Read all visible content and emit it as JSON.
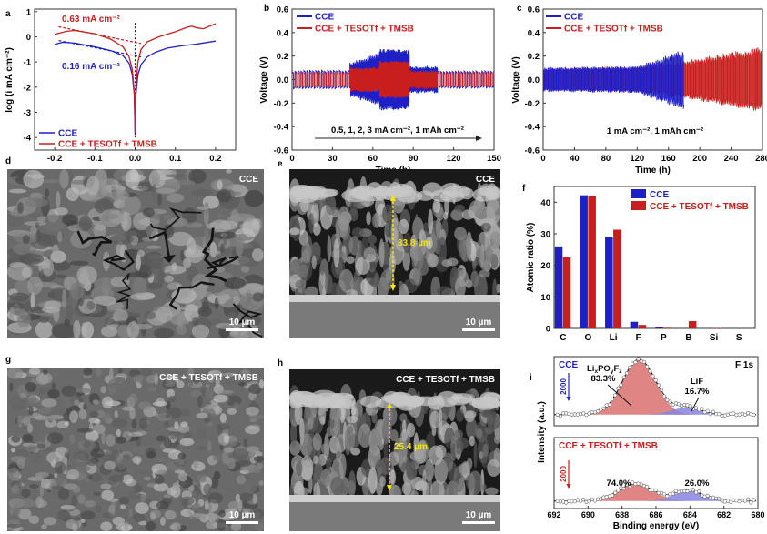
{
  "panel_letters": {
    "a": "a",
    "b": "b",
    "c": "c",
    "d": "d",
    "e": "e",
    "f": "f",
    "g": "g",
    "h": "h",
    "i": "i"
  },
  "colors": {
    "cce": "#1f1fc8",
    "additive": "#c81e1e",
    "red_peak": "#d9716f",
    "blue_peak": "#8585e0",
    "scale_text": "#ffffff",
    "thickness": "#f5e600"
  },
  "chart_data": [
    {
      "id": "a",
      "type": "line",
      "xlabel": "Potential (V, vs. Li⁺/Li)",
      "ylabel": "log (i mA cm⁻²)",
      "xlim": [
        -0.25,
        0.25
      ],
      "ylim": [
        -4.5,
        1.1
      ],
      "xticks": [
        "-0.2",
        "-0.1",
        "0.0",
        "0.1",
        "0.2"
      ],
      "xtick_values": [
        -0.2,
        -0.1,
        0,
        0.1,
        0.2
      ],
      "yticks": [
        "1",
        "0",
        "-1",
        "-2",
        "-3",
        "-4"
      ],
      "ytick_values": [
        1,
        0,
        -1,
        -2,
        -3,
        -4
      ],
      "series": [
        {
          "name": "CCE",
          "color": "#1f1fc8",
          "x": [
            -0.2,
            -0.18,
            -0.15,
            -0.1,
            -0.06,
            -0.03,
            -0.015,
            -0.007,
            -0.002,
            0,
            0.002,
            0.007,
            0.015,
            0.03,
            0.05,
            0.08,
            0.12,
            0.15,
            0.2
          ],
          "y": [
            -0.3,
            -0.22,
            -0.25,
            -0.4,
            -0.55,
            -0.75,
            -1.05,
            -1.5,
            -2.3,
            -3.9,
            -2.3,
            -1.5,
            -1.1,
            -0.8,
            -0.62,
            -0.45,
            -0.35,
            -0.3,
            -0.17
          ]
        },
        {
          "name": "CCE + TESOTf + TMSB",
          "color": "#c81e1e",
          "x": [
            -0.2,
            -0.17,
            -0.15,
            -0.1,
            -0.06,
            -0.03,
            -0.015,
            -0.007,
            -0.002,
            0,
            0.002,
            0.007,
            0.015,
            0.03,
            0.06,
            0.1,
            0.13,
            0.14,
            0.155,
            0.17,
            0.2
          ],
          "y": [
            0.1,
            0.22,
            0.25,
            0.12,
            -0.1,
            -0.4,
            -0.8,
            -1.3,
            -2.2,
            -3.8,
            -2.0,
            -1.0,
            -0.5,
            -0.2,
            0.0,
            0.2,
            0.38,
            0.42,
            0.35,
            0.32,
            0.52
          ]
        }
      ],
      "tangents": [
        {
          "series": "CCE + TESOTf + TMSB",
          "x": [
            -0.19,
            0.015
          ],
          "y": [
            0.4,
            -0.27
          ]
        },
        {
          "series": "CCE",
          "x": [
            -0.19,
            0.015
          ],
          "y": [
            -0.15,
            -0.8
          ]
        }
      ],
      "annotations": {
        "additive_current": "0.63 mA cm⁻²",
        "cce_current": "0.16 mA cm⁻²"
      },
      "legend": [
        "CCE",
        "CCE + TESOTf + TMSB"
      ],
      "legend_placement": "bottom-left"
    },
    {
      "id": "b",
      "type": "line",
      "xlabel": "Time (h)",
      "ylabel": "Voltage (V)",
      "xlim": [
        0,
        150
      ],
      "ylim": [
        -0.6,
        0.6
      ],
      "xticks": [
        "0",
        "30",
        "60",
        "90",
        "120",
        "150"
      ],
      "xtick_values": [
        0,
        30,
        60,
        90,
        120,
        150
      ],
      "yticks": [
        "0.6",
        "0.4",
        "0.2",
        "0.0",
        "-0.2",
        "-0.4",
        "-0.6"
      ],
      "ytick_values": [
        0.6,
        0.4,
        0.2,
        0,
        -0.2,
        -0.4,
        -0.6
      ],
      "series": [
        {
          "name": "CCE",
          "color": "#1f1fc8",
          "segments": [
            {
              "t": [
                0,
                43
              ],
              "amp": [
                0.075,
                0.075
              ],
              "period": 2.2
            },
            {
              "t": [
                43,
                65
              ],
              "amp": [
                0.14,
                0.22
              ],
              "period": 1.2
            },
            {
              "t": [
                65,
                87
              ],
              "amp": [
                0.25,
                0.24
              ],
              "period": 0.3
            },
            {
              "t": [
                87,
                108
              ],
              "amp": [
                0.11,
                0.11
              ],
              "period": 1.2
            },
            {
              "t": [
                108,
                150
              ],
              "amp": [
                0.07,
                0.07
              ],
              "period": 2.2
            }
          ]
        },
        {
          "name": "CCE + TESOTf + TMSB",
          "color": "#c81e1e",
          "segments": [
            {
              "t": [
                0,
                43
              ],
              "amp": [
                0.06,
                0.06
              ],
              "period": 2.2
            },
            {
              "t": [
                43,
                65
              ],
              "amp": [
                0.1,
                0.1
              ],
              "period": 1.2
            },
            {
              "t": [
                65,
                87
              ],
              "amp": [
                0.15,
                0.15
              ],
              "period": 0.3
            },
            {
              "t": [
                87,
                108
              ],
              "amp": [
                0.07,
                0.07
              ],
              "period": 1.2
            },
            {
              "t": [
                108,
                150
              ],
              "amp": [
                0.06,
                0.06
              ],
              "period": 2.2
            }
          ]
        }
      ],
      "annotation": "0.5, 1, 2, 3 mA cm⁻², 1 mAh cm⁻²",
      "legend": [
        "CCE",
        "CCE + TESOTf + TMSB"
      ],
      "legend_placement": "top-left"
    },
    {
      "id": "c",
      "type": "line",
      "xlabel": "Time (h)",
      "ylabel": "Voltage (V)",
      "xlim": [
        0,
        280
      ],
      "ylim": [
        -0.6,
        0.6
      ],
      "xticks": [
        "0",
        "40",
        "80",
        "120",
        "160",
        "200",
        "240",
        "280"
      ],
      "xtick_values": [
        0,
        40,
        80,
        120,
        160,
        200,
        240,
        280
      ],
      "yticks": [
        "0.6",
        "0.4",
        "0.2",
        "0.0",
        "-0.2",
        "-0.4",
        "-0.6"
      ],
      "ytick_values": [
        0.6,
        0.4,
        0.2,
        0,
        -0.2,
        -0.4,
        -0.6
      ],
      "series": [
        {
          "name": "CCE + TESOTf + TMSB",
          "color": "#c81e1e",
          "segments": [
            {
              "t": [
                0,
                140
              ],
              "amp": [
                0.09,
                0.11
              ],
              "period": 2
            },
            {
              "t": [
                140,
                280
              ],
              "amp": [
                0.11,
                0.27
              ],
              "period": 2
            }
          ]
        },
        {
          "name": "CCE",
          "color": "#1f1fc8",
          "segments": [
            {
              "t": [
                0,
                120
              ],
              "amp": [
                0.1,
                0.11
              ],
              "period": 2
            },
            {
              "t": [
                120,
                180
              ],
              "amp": [
                0.11,
                0.25
              ],
              "period": 2
            }
          ]
        }
      ],
      "annotation": "1 mA cm⁻², 1 mAh cm⁻²",
      "legend": [
        "CCE",
        "CCE + TESOTf + TMSB"
      ],
      "legend_placement": "top-left"
    },
    {
      "id": "f",
      "type": "bar",
      "ylabel": "Atomic ratio (%)",
      "ylim": [
        0,
        45
      ],
      "yticks": [
        "0",
        "10",
        "20",
        "30",
        "40"
      ],
      "ytick_values": [
        0,
        10,
        20,
        30,
        40
      ],
      "categories": [
        "C",
        "O",
        "Li",
        "F",
        "P",
        "B",
        "Si",
        "S"
      ],
      "series": [
        {
          "name": "CCE",
          "color": "#1f1fc8",
          "values": [
            26.0,
            42.2,
            29.1,
            2.1,
            0.3,
            0,
            0,
            0
          ]
        },
        {
          "name": "CCE + TESOTf + TMSB",
          "color": "#c81e1e",
          "values": [
            22.5,
            41.9,
            31.3,
            1.1,
            0.2,
            2.3,
            0.1,
            0
          ]
        }
      ],
      "legend": [
        "CCE",
        "CCE + TESOTf + TMSB"
      ],
      "legend_placement": "top-right"
    },
    {
      "id": "i",
      "type": "area",
      "xlabel": "Binding energy (eV)",
      "ylabel": "Intensity (a.u.)",
      "xlim": [
        692,
        680
      ],
      "xticks": [
        "692",
        "690",
        "688",
        "686",
        "684",
        "682",
        "680"
      ],
      "xtick_values": [
        692,
        690,
        688,
        686,
        684,
        682,
        680
      ],
      "title": "F 1s",
      "panels": [
        {
          "name": "CCE",
          "color": "#1f1fc8",
          "scale_bar": "2000",
          "ylim": [
            -0.2,
            1.05
          ],
          "peaks": [
            {
              "label_parts": [
                "Li",
                "x",
                "PO",
                "y",
                "F",
                "z"
              ],
              "percent": "83.3%",
              "center": 687.0,
              "fwhm": 2.3,
              "height": 1.0
            },
            {
              "label": "LiF",
              "percent": "16.7%",
              "center": 684.2,
              "fwhm": 2.0,
              "height": 0.13
            }
          ]
        },
        {
          "name": "CCE + TESOTf + TMSB",
          "color": "#c81e1e",
          "scale_bar": "2000",
          "ylim": [
            -0.13,
            1.1
          ],
          "peaks": [
            {
              "percent": "74.0%",
              "center": 687.2,
              "fwhm": 2.4,
              "height": 0.3
            },
            {
              "percent": "26.0%",
              "center": 684.1,
              "fwhm": 1.9,
              "height": 0.19
            }
          ]
        }
      ]
    }
  ],
  "sem_images": {
    "d": {
      "label": "CCE",
      "scale_bar": "10 µm"
    },
    "e": {
      "label": "CCE",
      "scale_bar": "10 µm",
      "thickness": "33.8 µm"
    },
    "g": {
      "label": "CCE + TESOTf + TMSB",
      "scale_bar": "10 µm"
    },
    "h": {
      "label": "CCE + TESOTf + TMSB",
      "scale_bar": "10 µm",
      "thickness": "25.4 µm"
    }
  }
}
